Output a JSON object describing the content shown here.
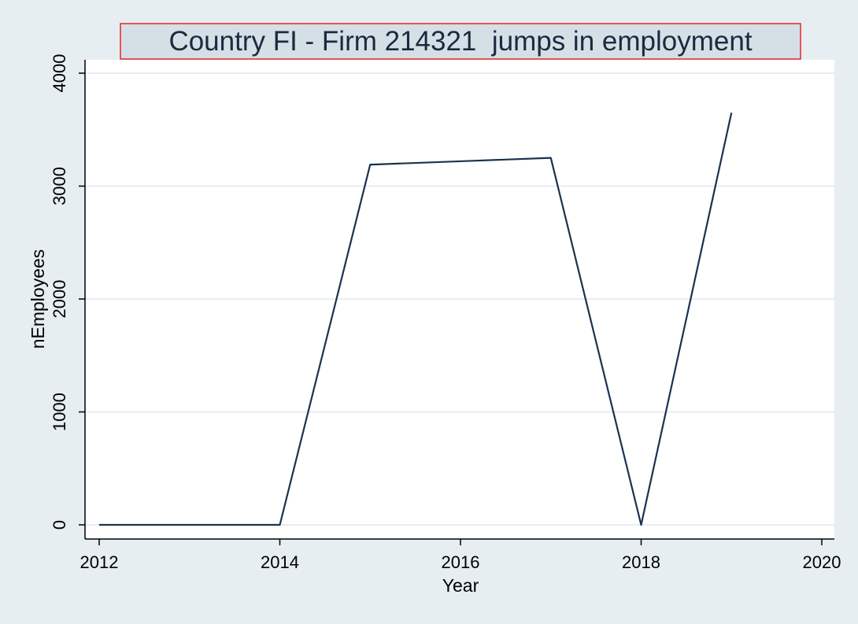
{
  "chart_data": {
    "type": "line",
    "title": "Country FI - Firm 214321  jumps in employment",
    "xlabel": "Year",
    "ylabel": "nEmployees",
    "x": [
      2012,
      2013,
      2014,
      2015,
      2016,
      2017,
      2018,
      2019
    ],
    "series": [
      {
        "values": [
          0,
          0,
          0,
          3190,
          3220,
          3250,
          0,
          3650
        ]
      }
    ],
    "xlim": [
      2012,
      2020
    ],
    "ylim": [
      0,
      4000
    ],
    "xticks": [
      2012,
      2014,
      2016,
      2018,
      2020
    ],
    "yticks": [
      0,
      1000,
      2000,
      3000,
      4000
    ],
    "xtick_labels": [
      "2012",
      "2014",
      "2016",
      "2018",
      "2020"
    ],
    "ytick_labels": [
      "0",
      "1000",
      "2000",
      "3000",
      "4000"
    ],
    "grid": "horizontal",
    "legend": "none",
    "colors": {
      "page_background": "#e6eef1",
      "plot_background": "#ffffff",
      "grid": "#e6eef1",
      "line": "#1a3350",
      "axis": "#000000",
      "title_box_fill": "#d5e0e6",
      "title_box_border": "#e8232a"
    }
  }
}
